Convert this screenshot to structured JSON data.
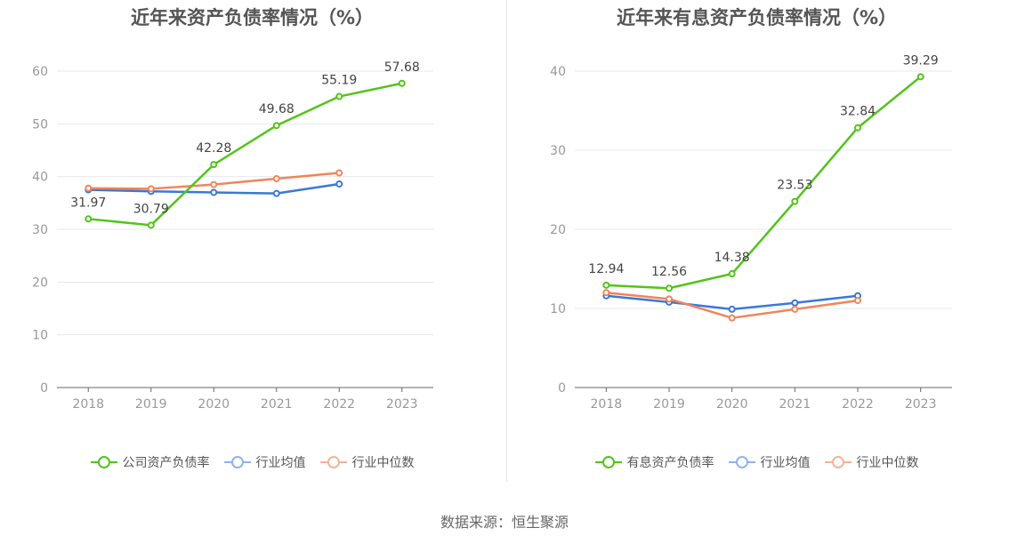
{
  "source_label": "数据来源：恒生聚源",
  "colors": {
    "company": "#52c41a",
    "avg": "#3a78d8",
    "median": "#f0855a"
  },
  "chart_data": [
    {
      "type": "line",
      "title": "近年来资产负债率情况（%）",
      "x": [
        "2018",
        "2019",
        "2020",
        "2021",
        "2022",
        "2023"
      ],
      "yticks": [
        "0",
        "10",
        "20",
        "30",
        "40",
        "50",
        "60"
      ],
      "ylim": [
        0,
        60
      ],
      "grid": true,
      "legend_position": "bottom",
      "series": [
        {
          "name": "公司资产负债率",
          "values": [
            31.97,
            30.79,
            42.28,
            49.68,
            55.19,
            57.68
          ],
          "labels": [
            "31.97",
            "30.79",
            "42.28",
            "49.68",
            "55.19",
            "57.68"
          ]
        },
        {
          "name": "行业均值",
          "values": [
            37.5,
            37.2,
            37.0,
            36.8,
            38.6,
            null
          ]
        },
        {
          "name": "行业中位数",
          "values": [
            37.8,
            37.7,
            38.5,
            39.6,
            40.7,
            null
          ]
        }
      ]
    },
    {
      "type": "line",
      "title": "近年来有息资产负债率情况（%）",
      "x": [
        "2018",
        "2019",
        "2020",
        "2021",
        "2022",
        "2023"
      ],
      "yticks": [
        "0",
        "10",
        "20",
        "30",
        "40"
      ],
      "ylim": [
        0,
        40
      ],
      "grid": true,
      "legend_position": "bottom",
      "series": [
        {
          "name": "有息资产负债率",
          "values": [
            12.94,
            12.56,
            14.38,
            23.53,
            32.84,
            39.29
          ],
          "labels": [
            "12.94",
            "12.56",
            "14.38",
            "23.53",
            "32.84",
            "39.29"
          ]
        },
        {
          "name": "行业均值",
          "values": [
            11.6,
            10.8,
            9.9,
            10.7,
            11.6,
            null
          ]
        },
        {
          "name": "行业中位数",
          "values": [
            12.0,
            11.2,
            8.8,
            9.9,
            11.0,
            null
          ]
        }
      ]
    }
  ]
}
